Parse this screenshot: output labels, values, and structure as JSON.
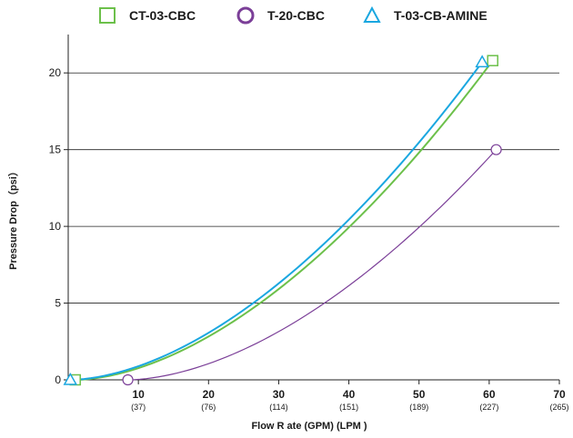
{
  "chart_data": {
    "type": "line",
    "xlabel": "Flow R ate (GPM) (LPM  )",
    "ylabel": "Pressure Drop（psi）",
    "xlim": [
      0,
      70
    ],
    "ylim": [
      0,
      22.5
    ],
    "x_ticks": [
      {
        "value": 10,
        "label": "10",
        "sublabel": "(37)"
      },
      {
        "value": 20,
        "label": "20",
        "sublabel": "(76)"
      },
      {
        "value": 30,
        "label": "30",
        "sublabel": "(114)"
      },
      {
        "value": 40,
        "label": "40",
        "sublabel": "(151)"
      },
      {
        "value": 50,
        "label": "50",
        "sublabel": "(189)"
      },
      {
        "value": 60,
        "label": "60",
        "sublabel": "(227)"
      },
      {
        "value": 70,
        "label": "70",
        "sublabel": "(265)"
      }
    ],
    "y_ticks": [
      0,
      5,
      10,
      15,
      20
    ],
    "grid": "horizontal",
    "legend_position": "top",
    "series": [
      {
        "name": "CT-03-CBC",
        "color": "#6cc04a",
        "marker": "square",
        "x": [
          1,
          60.5
        ],
        "y": [
          0,
          20.8
        ]
      },
      {
        "name": "T-20-CBC",
        "color": "#7b3f98",
        "marker": "circle",
        "x": [
          8.5,
          61
        ],
        "y": [
          0,
          15
        ]
      },
      {
        "name": "T-03-CB-AMINE",
        "color": "#1aa7e0",
        "marker": "triangle",
        "x": [
          0.3,
          59
        ],
        "y": [
          0,
          20.7
        ]
      }
    ]
  }
}
